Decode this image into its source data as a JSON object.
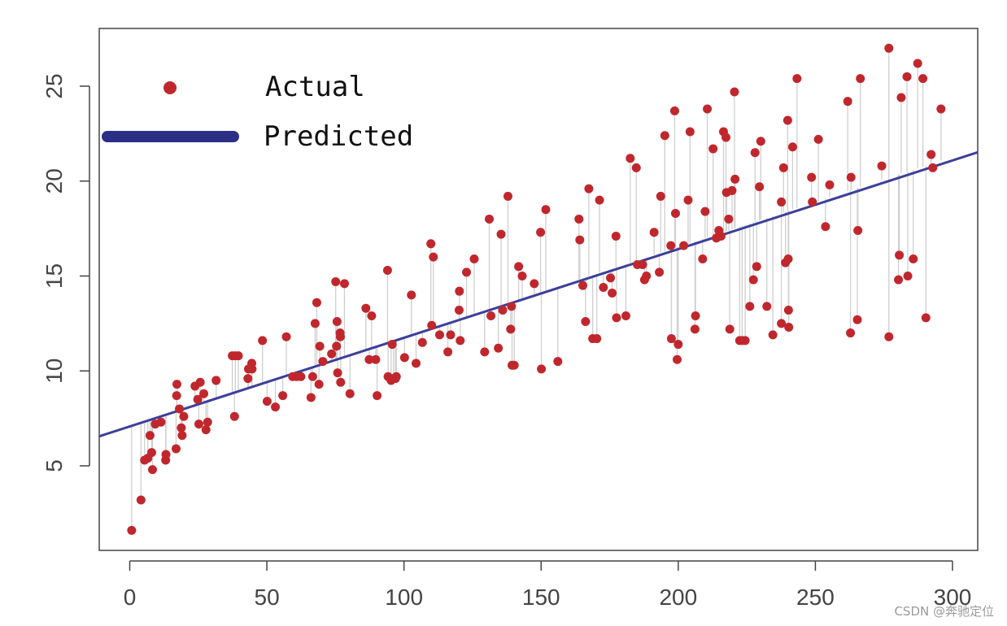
{
  "chart_data": {
    "type": "scatter",
    "title": "",
    "xlabel": "",
    "ylabel": "",
    "xlim": [
      -10,
      305
    ],
    "ylim": [
      0,
      28
    ],
    "xticks": [
      0,
      50,
      100,
      150,
      200,
      250,
      300
    ],
    "yticks": [
      5,
      10,
      15,
      20,
      25
    ],
    "grid": false,
    "legend": {
      "position": "top-left",
      "entries": [
        "Actual",
        "Predicted"
      ]
    },
    "series": [
      {
        "name": "Actual",
        "kind": "points",
        "color": "#c0272d",
        "points": [
          [
            0.7,
            1.6
          ],
          [
            4.1,
            3.2
          ],
          [
            5.4,
            5.3
          ],
          [
            6.6,
            5.4
          ],
          [
            7.4,
            6.6
          ],
          [
            8.0,
            5.7
          ],
          [
            8.3,
            4.8
          ],
          [
            9.3,
            7.2
          ],
          [
            11.4,
            7.3
          ],
          [
            13.1,
            5.3
          ],
          [
            13.2,
            5.6
          ],
          [
            16.9,
            5.9
          ],
          [
            17.1,
            8.7
          ],
          [
            17.2,
            9.3
          ],
          [
            18.1,
            8.0
          ],
          [
            18.8,
            7.0
          ],
          [
            19.1,
            6.6
          ],
          [
            19.7,
            7.6
          ],
          [
            23.8,
            9.2
          ],
          [
            24.8,
            8.5
          ],
          [
            25.2,
            7.2
          ],
          [
            25.7,
            9.4
          ],
          [
            27.0,
            8.8
          ],
          [
            27.8,
            6.9
          ],
          [
            28.4,
            7.3
          ],
          [
            31.5,
            9.5
          ],
          [
            37.4,
            10.8
          ],
          [
            38.2,
            7.6
          ],
          [
            38.5,
            10.8
          ],
          [
            39.6,
            10.8
          ],
          [
            43.1,
            9.6
          ],
          [
            43.3,
            10.1
          ],
          [
            44.5,
            10.4
          ],
          [
            44.6,
            10.1
          ],
          [
            48.4,
            11.6
          ],
          [
            50.1,
            8.4
          ],
          [
            53.1,
            8.1
          ],
          [
            55.8,
            8.7
          ],
          [
            57.1,
            11.8
          ],
          [
            59.4,
            9.7
          ],
          [
            60.8,
            9.7
          ],
          [
            62.4,
            9.7
          ],
          [
            66.1,
            8.6
          ],
          [
            66.7,
            9.7
          ],
          [
            67.6,
            12.5
          ],
          [
            68.2,
            13.6
          ],
          [
            69.0,
            9.3
          ],
          [
            69.3,
            11.3
          ],
          [
            70.4,
            10.5
          ],
          [
            73.6,
            10.9
          ],
          [
            75.1,
            14.7
          ],
          [
            75.4,
            11.3
          ],
          [
            75.6,
            12.6
          ],
          [
            75.8,
            9.9
          ],
          [
            76.7,
            12.0
          ],
          [
            76.8,
            11.8
          ],
          [
            76.9,
            9.4
          ],
          [
            78.3,
            14.6
          ],
          [
            80.3,
            8.8
          ],
          [
            86.1,
            13.3
          ],
          [
            87.3,
            10.6
          ],
          [
            88.2,
            12.9
          ],
          [
            89.7,
            10.6
          ],
          [
            90.2,
            8.7
          ],
          [
            94.0,
            15.3
          ],
          [
            94.2,
            9.7
          ],
          [
            95.3,
            9.5
          ],
          [
            95.7,
            11.4
          ],
          [
            96.2,
            9.6
          ],
          [
            96.9,
            9.6
          ],
          [
            97.2,
            9.7
          ],
          [
            100.2,
            10.7
          ],
          [
            102.7,
            14.0
          ],
          [
            104.4,
            10.4
          ],
          [
            106.7,
            11.5
          ],
          [
            109.8,
            16.7
          ],
          [
            110.1,
            12.4
          ],
          [
            110.7,
            16.0
          ],
          [
            113.0,
            11.9
          ],
          [
            116.0,
            11.0
          ],
          [
            117.0,
            11.9
          ],
          [
            120.1,
            13.2
          ],
          [
            120.2,
            14.2
          ],
          [
            120.5,
            11.6
          ],
          [
            122.8,
            15.2
          ],
          [
            125.6,
            15.9
          ],
          [
            129.4,
            11.0
          ],
          [
            131.1,
            18.0
          ],
          [
            131.7,
            12.9
          ],
          [
            134.4,
            11.2
          ],
          [
            135.4,
            17.2
          ],
          [
            136.0,
            13.2
          ],
          [
            137.9,
            19.2
          ],
          [
            138.9,
            12.2
          ],
          [
            139.2,
            13.4
          ],
          [
            139.4,
            10.3
          ],
          [
            140.2,
            10.3
          ],
          [
            141.8,
            15.5
          ],
          [
            143.1,
            15.0
          ],
          [
            147.5,
            14.6
          ],
          [
            149.8,
            17.3
          ],
          [
            150.1,
            10.1
          ],
          [
            151.7,
            18.5
          ],
          [
            156.1,
            10.5
          ],
          [
            163.8,
            18.0
          ],
          [
            164.1,
            16.9
          ],
          [
            165.2,
            14.5
          ],
          [
            166.2,
            12.6
          ],
          [
            167.4,
            19.6
          ],
          [
            168.8,
            11.7
          ],
          [
            170.3,
            11.7
          ],
          [
            171.3,
            19.0
          ],
          [
            172.7,
            14.4
          ],
          [
            175.3,
            14.9
          ],
          [
            175.9,
            14.1
          ],
          [
            177.3,
            17.1
          ],
          [
            177.5,
            12.8
          ],
          [
            180.9,
            12.9
          ],
          [
            182.5,
            21.2
          ],
          [
            184.7,
            20.7
          ],
          [
            185.1,
            15.6
          ],
          [
            187.0,
            15.6
          ],
          [
            187.7,
            14.8
          ],
          [
            188.4,
            15.0
          ],
          [
            191.2,
            17.3
          ],
          [
            193.1,
            15.2
          ],
          [
            193.6,
            19.2
          ],
          [
            195.1,
            22.4
          ],
          [
            197.3,
            16.6
          ],
          [
            197.5,
            11.7
          ],
          [
            198.7,
            23.7
          ],
          [
            199.0,
            18.3
          ],
          [
            199.6,
            10.6
          ],
          [
            200.0,
            11.4
          ],
          [
            202.0,
            16.6
          ],
          [
            203.6,
            19.0
          ],
          [
            204.3,
            22.6
          ],
          [
            206.1,
            12.2
          ],
          [
            206.3,
            12.9
          ],
          [
            208.9,
            15.9
          ],
          [
            209.8,
            18.4
          ],
          [
            210.6,
            23.8
          ],
          [
            212.7,
            21.7
          ],
          [
            213.9,
            17.0
          ],
          [
            214.8,
            17.4
          ],
          [
            215.6,
            17.1
          ],
          [
            216.5,
            22.6
          ],
          [
            217.4,
            22.3
          ],
          [
            217.6,
            19.4
          ],
          [
            218.4,
            18.0
          ],
          [
            218.8,
            12.2
          ],
          [
            219.6,
            19.5
          ],
          [
            220.5,
            24.7
          ],
          [
            220.7,
            20.1
          ],
          [
            222.4,
            11.6
          ],
          [
            223.3,
            11.6
          ],
          [
            224.4,
            11.6
          ],
          [
            226.1,
            13.4
          ],
          [
            227.4,
            14.8
          ],
          [
            228.0,
            21.5
          ],
          [
            228.6,
            15.5
          ],
          [
            229.6,
            19.7
          ],
          [
            230.1,
            22.1
          ],
          [
            232.3,
            13.4
          ],
          [
            234.5,
            11.9
          ],
          [
            237.6,
            18.9
          ],
          [
            237.6,
            12.5
          ],
          [
            238.4,
            20.7
          ],
          [
            239.1,
            15.7
          ],
          [
            239.9,
            23.2
          ],
          [
            240.1,
            15.9
          ],
          [
            240.2,
            13.2
          ],
          [
            240.3,
            12.3
          ],
          [
            241.7,
            21.8
          ],
          [
            243.3,
            25.4
          ],
          [
            248.6,
            20.2
          ],
          [
            248.9,
            18.9
          ],
          [
            251.1,
            22.2
          ],
          [
            253.7,
            17.6
          ],
          [
            255.2,
            19.8
          ],
          [
            261.8,
            24.2
          ],
          [
            262.8,
            12.0
          ],
          [
            263.0,
            20.2
          ],
          [
            265.3,
            12.7
          ],
          [
            265.5,
            17.4
          ],
          [
            266.4,
            25.4
          ],
          [
            274.2,
            20.8
          ],
          [
            276.8,
            11.8
          ],
          [
            276.8,
            27.0
          ],
          [
            280.3,
            14.8
          ],
          [
            280.6,
            16.1
          ],
          [
            281.3,
            24.4
          ],
          [
            283.4,
            25.5
          ],
          [
            283.7,
            15.0
          ],
          [
            285.7,
            15.9
          ],
          [
            287.3,
            26.2
          ],
          [
            289.2,
            25.4
          ],
          [
            290.3,
            12.8
          ],
          [
            292.2,
            21.4
          ],
          [
            292.8,
            20.7
          ],
          [
            295.8,
            23.8
          ]
        ]
      },
      {
        "name": "Predicted",
        "kind": "line",
        "color": "#3c3f9a",
        "intercept": 7.03,
        "slope": 0.0475
      }
    ]
  },
  "colors": {
    "actual_point": "#c0272d",
    "predicted_line": "#3c3f9a",
    "legend_line": "#2b2f86",
    "residual_line": "#cfcfcf",
    "axis": "#444444"
  },
  "watermark": "CSDN @奔驰定位"
}
